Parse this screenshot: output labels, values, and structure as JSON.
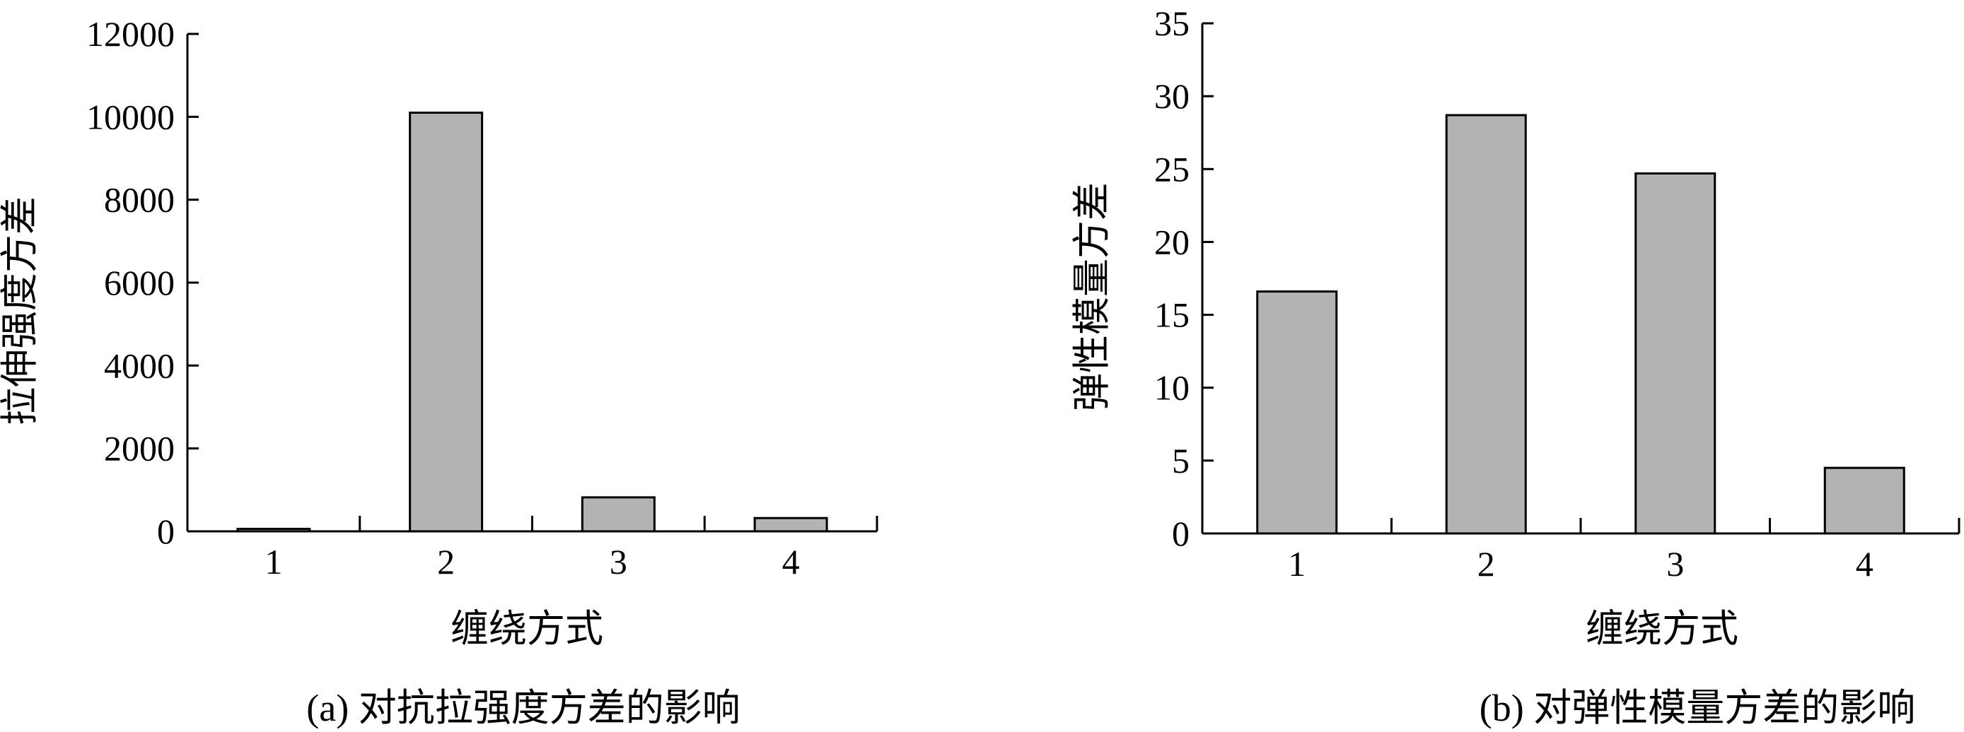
{
  "chart_data": [
    {
      "type": "bar",
      "caption": "(a) 对抗拉强度方差的影响",
      "xlabel": "缠绕方式",
      "ylabel": "拉伸强度方差",
      "categories": [
        "1",
        "2",
        "3",
        "4"
      ],
      "values": [
        60,
        10100,
        820,
        320
      ],
      "ylim": [
        0,
        12000
      ],
      "yticks": [
        0,
        2000,
        4000,
        6000,
        8000,
        10000,
        12000
      ],
      "bar_color": "#b3b3b3",
      "grid": false
    },
    {
      "type": "bar",
      "caption": "(b) 对弹性模量方差的影响",
      "xlabel": "缠绕方式",
      "ylabel": "弹性模量方差",
      "categories": [
        "1",
        "2",
        "3",
        "4"
      ],
      "values": [
        16.6,
        28.7,
        24.7,
        4.5
      ],
      "ylim": [
        0,
        35
      ],
      "yticks": [
        0,
        5,
        10,
        15,
        20,
        25,
        30,
        35
      ],
      "bar_color": "#b3b3b3",
      "grid": false
    }
  ]
}
